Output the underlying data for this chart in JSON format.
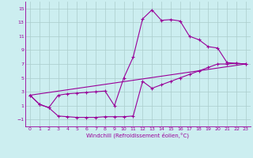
{
  "xlabel": "Windchill (Refroidissement éolien,°C)",
  "bg_color": "#cceef0",
  "line_color": "#990099",
  "grid_color": "#aacccc",
  "xlim": [
    -0.5,
    23.5
  ],
  "ylim": [
    -2,
    16
  ],
  "xticks": [
    0,
    1,
    2,
    3,
    4,
    5,
    6,
    7,
    8,
    9,
    10,
    11,
    12,
    13,
    14,
    15,
    16,
    17,
    18,
    19,
    20,
    21,
    22,
    23
  ],
  "yticks": [
    -1,
    1,
    3,
    5,
    7,
    9,
    11,
    13,
    15
  ],
  "series1_x": [
    0,
    1,
    2,
    3,
    4,
    5,
    6,
    7,
    8,
    9,
    10,
    11,
    12,
    13,
    14,
    15,
    16,
    17,
    18,
    19,
    20,
    21,
    22,
    23
  ],
  "series1_y": [
    2.5,
    1.2,
    0.7,
    2.5,
    2.7,
    2.8,
    2.9,
    3.0,
    3.1,
    1.0,
    5.0,
    8.0,
    13.5,
    14.8,
    13.3,
    13.4,
    13.2,
    11.0,
    10.5,
    9.5,
    9.3,
    7.2,
    7.1,
    7.0
  ],
  "series2_x": [
    0,
    1,
    2,
    3,
    4,
    5,
    6,
    7,
    8,
    9,
    10,
    11,
    12,
    13,
    14,
    15,
    16,
    17,
    18,
    19,
    20,
    21,
    22,
    23
  ],
  "series2_y": [
    2.5,
    1.2,
    0.7,
    -0.5,
    -0.6,
    -0.7,
    -0.7,
    -0.7,
    -0.6,
    -0.6,
    -0.6,
    -0.5,
    4.5,
    3.5,
    4.0,
    4.5,
    5.0,
    5.5,
    6.0,
    6.5,
    7.0,
    7.0,
    7.1,
    7.0
  ],
  "series3_x": [
    0,
    23
  ],
  "series3_y": [
    2.5,
    7.0
  ]
}
